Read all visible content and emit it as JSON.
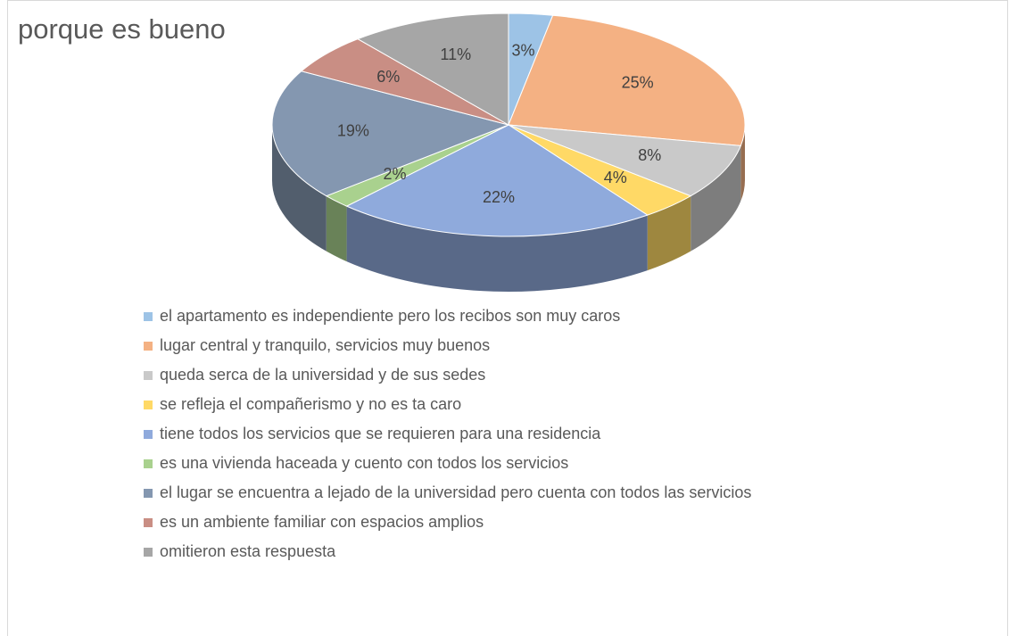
{
  "chart_data": {
    "type": "pie3d",
    "title": "porque es bueno",
    "categories": [
      "el apartamento es independiente pero los recibos son muy caros",
      "lugar central y tranquilo, servicios muy buenos",
      "queda serca de la universidad y de sus sedes",
      "se refleja el compañerismo y no es ta caro",
      "tiene todos los servicios que se requieren para una residencia",
      "es una vivienda haceada y cuento con todos los servicios",
      "el lugar se encuentra a lejado de la universidad pero cuenta con todos las servicios",
      "es un ambiente familiar con espacios amplios",
      "omitieron esta respuesta"
    ],
    "values": [
      3,
      25,
      8,
      4,
      22,
      2,
      19,
      6,
      11
    ],
    "value_labels": [
      "3%",
      "25%",
      "8%",
      "4%",
      "22%",
      "2%",
      "19%",
      "6%",
      "11%"
    ],
    "colors": [
      "#9dc3e6",
      "#f4b183",
      "#c9c9c9",
      "#ffd966",
      "#8faadc",
      "#a9d18e",
      "#8497b0",
      "#c98e84",
      "#a6a6a6"
    ],
    "legend": "bottom"
  }
}
